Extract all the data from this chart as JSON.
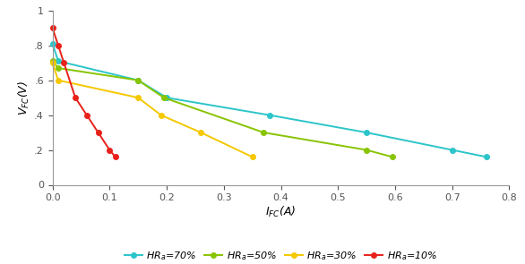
{
  "title": "",
  "xlabel": "$I_{FC}$(A)",
  "ylabel": "$V_{FC}$(V)",
  "xlim": [
    0,
    0.8
  ],
  "ylim": [
    0,
    1.0
  ],
  "xticks": [
    0.0,
    0.1,
    0.2,
    0.3,
    0.4,
    0.5,
    0.6,
    0.7,
    0.8
  ],
  "yticks": [
    0,
    0.2,
    0.4,
    0.6,
    0.8,
    1
  ],
  "ytick_labels": [
    "0",
    ".2",
    ".4",
    ".6",
    ".8",
    "1"
  ],
  "series": [
    {
      "label": "$HR_{a}$=70%",
      "color": "#2BC5CA",
      "marker": "o",
      "markersize": 4,
      "x": [
        0.0,
        0.01,
        0.15,
        0.2,
        0.38,
        0.55,
        0.7,
        0.76
      ],
      "y": [
        0.81,
        0.71,
        0.6,
        0.5,
        0.4,
        0.3,
        0.2,
        0.16
      ]
    },
    {
      "label": "$HR_{a}$=50%",
      "color": "#88C400",
      "marker": "o",
      "markersize": 4,
      "x": [
        0.0,
        0.01,
        0.15,
        0.195,
        0.37,
        0.55,
        0.595
      ],
      "y": [
        0.71,
        0.67,
        0.6,
        0.5,
        0.3,
        0.2,
        0.16
      ]
    },
    {
      "label": "$HR_{a}$=30%",
      "color": "#F5C800",
      "marker": "o",
      "markersize": 4,
      "x": [
        0.0,
        0.01,
        0.15,
        0.19,
        0.26,
        0.35
      ],
      "y": [
        0.7,
        0.6,
        0.5,
        0.4,
        0.3,
        0.16
      ]
    },
    {
      "label": "$HR_{a}$=10%",
      "color": "#E8211A",
      "marker": "o",
      "markersize": 4,
      "x": [
        0.0,
        0.01,
        0.02,
        0.04,
        0.06,
        0.08,
        0.1,
        0.11
      ],
      "y": [
        0.9,
        0.8,
        0.7,
        0.5,
        0.4,
        0.3,
        0.2,
        0.16
      ]
    }
  ],
  "legend_ncol": 4,
  "legend_fontsize": 8,
  "axis_fontsize": 9,
  "tick_fontsize": 8,
  "background_color": "#ffffff"
}
